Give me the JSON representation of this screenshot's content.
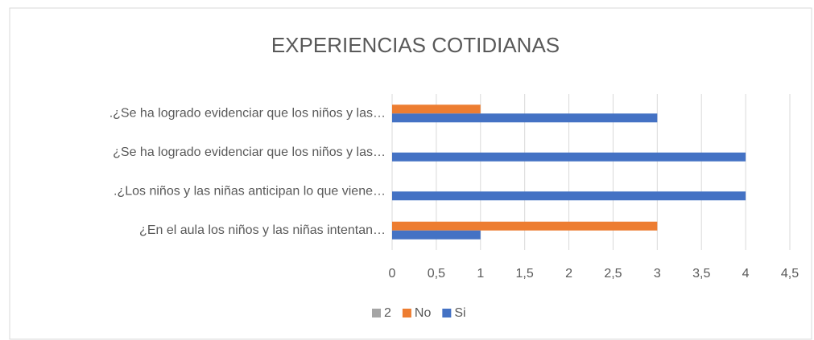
{
  "chart_data": {
    "type": "hbar",
    "title": "EXPERIENCIAS COTIDIANAS",
    "categories": [
      ".¿Se ha logrado evidenciar que los niños y las…",
      "¿Se ha logrado evidenciar que los niños y las…",
      ".¿Los niños y las niñas anticipan lo que viene…",
      "¿En el aula los niños y las niñas intentan…"
    ],
    "series": [
      {
        "name": "2",
        "color": "#a5a5a5",
        "values": [
          null,
          null,
          null,
          null
        ]
      },
      {
        "name": "No",
        "color": "#ed7d31",
        "values": [
          1,
          null,
          null,
          3
        ]
      },
      {
        "name": "Si",
        "color": "#4472c4",
        "values": [
          3,
          4,
          4,
          1
        ]
      }
    ],
    "xlim": [
      0,
      4.5
    ],
    "xticks": [
      0,
      {
        "value": 0.5,
        "label": "0,5"
      },
      1,
      {
        "value": 1.5,
        "label": "1,5"
      },
      2,
      {
        "value": 2.5,
        "label": "2,5"
      },
      3,
      {
        "value": 3.5,
        "label": "3,5"
      },
      4,
      {
        "value": 4.5,
        "label": "4,5"
      }
    ],
    "grid": true,
    "legend": "bottom"
  }
}
